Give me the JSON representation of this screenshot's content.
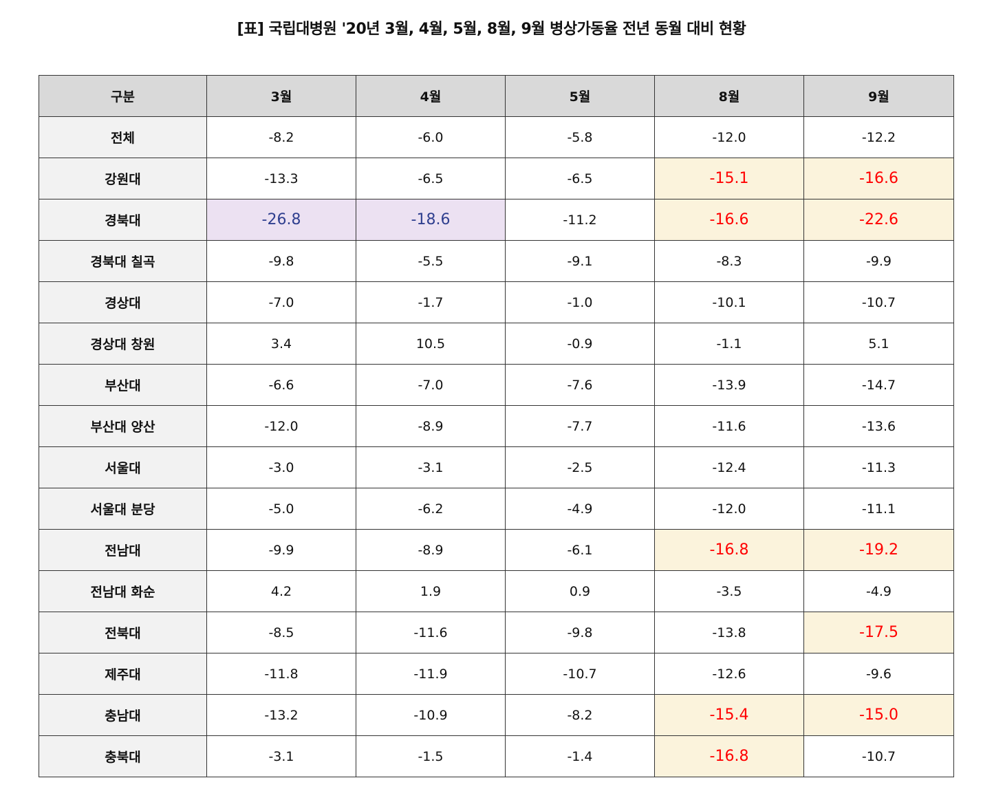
{
  "title": "[표] 국립대병원 '20년 3월, 4월, 5월, 8월, 9월 병상가동율 전년 동월 대비 현황",
  "columns": [
    "구분",
    "3월",
    "4월",
    "5월",
    "8월",
    "9월"
  ],
  "colors": {
    "header_bg": "#d9d9d9",
    "rowhead_bg": "#f2f2f2",
    "highlight_red_bg": "#fbf3dc",
    "highlight_red_text": "#ff0000",
    "highlight_blue_bg": "#ece1f2",
    "highlight_blue_text": "#2f3f8f"
  },
  "rows": [
    {
      "name": "전체",
      "values": [
        "-8.2",
        "-6.0",
        "-5.8",
        "-12.0",
        "-12.2"
      ],
      "highlight": [
        "",
        "",
        "",
        "",
        ""
      ]
    },
    {
      "name": "강원대",
      "values": [
        "-13.3",
        "-6.5",
        "-6.5",
        "-15.1",
        "-16.6"
      ],
      "highlight": [
        "",
        "",
        "",
        "red",
        "red"
      ]
    },
    {
      "name": "경북대",
      "values": [
        "-26.8",
        "-18.6",
        "-11.2",
        "-16.6",
        "-22.6"
      ],
      "highlight": [
        "blue",
        "blue",
        "",
        "red",
        "red"
      ]
    },
    {
      "name": "경북대 칠곡",
      "values": [
        "-9.8",
        "-5.5",
        "-9.1",
        "-8.3",
        "-9.9"
      ],
      "highlight": [
        "",
        "",
        "",
        "",
        ""
      ]
    },
    {
      "name": "경상대",
      "values": [
        "-7.0",
        "-1.7",
        "-1.0",
        "-10.1",
        "-10.7"
      ],
      "highlight": [
        "",
        "",
        "",
        "",
        ""
      ]
    },
    {
      "name": "경상대 창원",
      "values": [
        "3.4",
        "10.5",
        "-0.9",
        "-1.1",
        "5.1"
      ],
      "highlight": [
        "",
        "",
        "",
        "",
        ""
      ]
    },
    {
      "name": "부산대",
      "values": [
        "-6.6",
        "-7.0",
        "-7.6",
        "-13.9",
        "-14.7"
      ],
      "highlight": [
        "",
        "",
        "",
        "",
        ""
      ]
    },
    {
      "name": "부산대 양산",
      "values": [
        "-12.0",
        "-8.9",
        "-7.7",
        "-11.6",
        "-13.6"
      ],
      "highlight": [
        "",
        "",
        "",
        "",
        ""
      ]
    },
    {
      "name": "서울대",
      "values": [
        "-3.0",
        "-3.1",
        "-2.5",
        "-12.4",
        "-11.3"
      ],
      "highlight": [
        "",
        "",
        "",
        "",
        ""
      ]
    },
    {
      "name": "서울대 분당",
      "values": [
        "-5.0",
        "-6.2",
        "-4.9",
        "-12.0",
        "-11.1"
      ],
      "highlight": [
        "",
        "",
        "",
        "",
        ""
      ]
    },
    {
      "name": "전남대",
      "values": [
        "-9.9",
        "-8.9",
        "-6.1",
        "-16.8",
        "-19.2"
      ],
      "highlight": [
        "",
        "",
        "",
        "red",
        "red"
      ]
    },
    {
      "name": "전남대 화순",
      "values": [
        "4.2",
        "1.9",
        "0.9",
        "-3.5",
        "-4.9"
      ],
      "highlight": [
        "",
        "",
        "",
        "",
        ""
      ]
    },
    {
      "name": "전북대",
      "values": [
        "-8.5",
        "-11.6",
        "-9.8",
        "-13.8",
        "-17.5"
      ],
      "highlight": [
        "",
        "",
        "",
        "",
        "red"
      ]
    },
    {
      "name": "제주대",
      "values": [
        "-11.8",
        "-11.9",
        "-10.7",
        "-12.6",
        "-9.6"
      ],
      "highlight": [
        "",
        "",
        "",
        "",
        ""
      ]
    },
    {
      "name": "충남대",
      "values": [
        "-13.2",
        "-10.9",
        "-8.2",
        "-15.4",
        "-15.0"
      ],
      "highlight": [
        "",
        "",
        "",
        "red",
        "red"
      ]
    },
    {
      "name": "충북대",
      "values": [
        "-3.1",
        "-1.5",
        "-1.4",
        "-16.8",
        "-10.7"
      ],
      "highlight": [
        "",
        "",
        "",
        "red",
        ""
      ]
    }
  ]
}
